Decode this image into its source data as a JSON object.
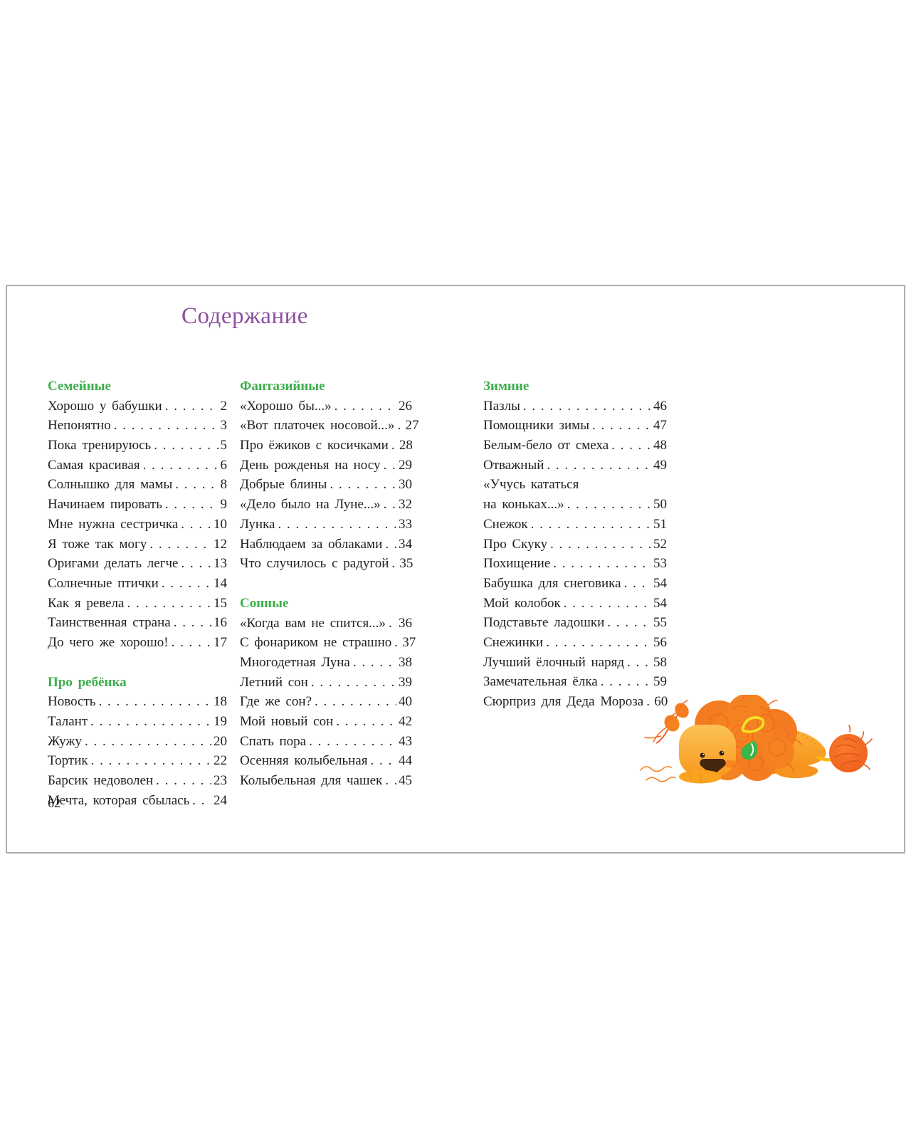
{
  "toc": {
    "title": "Содержание",
    "page_number": "62",
    "colors": {
      "title_purple": "#8c4e9e",
      "header_green": "#3cae4a",
      "text": "#231f20",
      "lion_orange": "#f47b20",
      "lion_yellow": "#fbb040"
    },
    "illustration": "lion-with-yarn-pompom-tail",
    "columns": [
      {
        "sections": [
          {
            "header": "Семейные",
            "entries": [
              {
                "title": "Хорошо у бабушки",
                "page": "2"
              },
              {
                "title": "Непонятно",
                "page": "3"
              },
              {
                "title": "Пока тренируюсь",
                "page": "5"
              },
              {
                "title": "Самая красивая",
                "page": "6"
              },
              {
                "title": "Солнышко для мамы",
                "page": "8"
              },
              {
                "title": "Начинаем пировать",
                "page": "9"
              },
              {
                "title": "Мне нужна сестричка",
                "page": "10"
              },
              {
                "title": "Я тоже так могу",
                "page": "12"
              },
              {
                "title": "Оригами делать легче",
                "page": "13"
              },
              {
                "title": "Солнечные птички",
                "page": "14"
              },
              {
                "title": "Как я ревела",
                "page": "15"
              },
              {
                "title": "Таинственная страна",
                "page": "16"
              },
              {
                "title": "До чего же хорошо!",
                "page": "17"
              }
            ]
          },
          {
            "header": "Про ребёнка",
            "entries": [
              {
                "title": "Новость",
                "page": "18"
              },
              {
                "title": "Талант",
                "page": "19"
              },
              {
                "title": "Жужу",
                "page": "20"
              },
              {
                "title": "Тортик",
                "page": "22"
              },
              {
                "title": "Барсик недоволен",
                "page": "23"
              },
              {
                "title": "Мечта, которая сбылась",
                "page": "24"
              }
            ]
          }
        ]
      },
      {
        "sections": [
          {
            "header": "Фантазийные",
            "entries": [
              {
                "title": "«Хорошо бы...»",
                "page": "26"
              },
              {
                "title": "«Вот платочек носовой...»",
                "page": "27"
              },
              {
                "title": "Про ёжиков с косичками",
                "page": "28"
              },
              {
                "title": "День рожденья на носу",
                "page": "29"
              },
              {
                "title": "Добрые блины",
                "page": "30"
              },
              {
                "title": "«Дело было на Луне...»",
                "page": "32"
              },
              {
                "title": "Лунка",
                "page": "33"
              },
              {
                "title": "Наблюдаем за облаками",
                "page": "34"
              },
              {
                "title": "Что случилось с радугой",
                "page": "35"
              }
            ]
          },
          {
            "header": "Сонные",
            "entries": [
              {
                "title": "«Когда вам не спится...»",
                "page": "36"
              },
              {
                "title": "С фонариком не страшно",
                "page": "37"
              },
              {
                "title": "Многодетная Луна",
                "page": "38"
              },
              {
                "title": "Летний сон",
                "page": "39"
              },
              {
                "title": "Где же сон?",
                "page": "40"
              },
              {
                "title": "Мой новый сон",
                "page": "42"
              },
              {
                "title": "Спать пора",
                "page": "43"
              },
              {
                "title": "Осенняя колыбельная",
                "page": "44"
              },
              {
                "title": "Колыбельная для чашек",
                "page": "45"
              }
            ]
          }
        ]
      },
      {
        "sections": [
          {
            "header": "Зимние",
            "entries": [
              {
                "title": "Пазлы",
                "page": "46"
              },
              {
                "title": "Помощники зимы",
                "page": "47"
              },
              {
                "title": "Белым-бело от смеха",
                "page": "48"
              },
              {
                "title": "Отважный",
                "page": "49"
              },
              {
                "title": "«Учусь кататься",
                "page": ""
              },
              {
                "title": "на коньках...»",
                "page": "50"
              },
              {
                "title": "Снежок",
                "page": "51"
              },
              {
                "title": "Про Скуку",
                "page": "52"
              },
              {
                "title": "Похищение",
                "page": "53"
              },
              {
                "title": "Бабушка для снеговика",
                "page": "54"
              },
              {
                "title": "Мой колобок",
                "page": "54"
              },
              {
                "title": "Подставьте ладошки",
                "page": "55"
              },
              {
                "title": "Снежинки",
                "page": "56"
              },
              {
                "title": "Лучший ёлочный наряд",
                "page": "58"
              },
              {
                "title": "Замечательная ёлка",
                "page": "59"
              },
              {
                "title": "Сюрприз для Деда Мороза",
                "page": "60"
              }
            ]
          }
        ]
      }
    ]
  }
}
